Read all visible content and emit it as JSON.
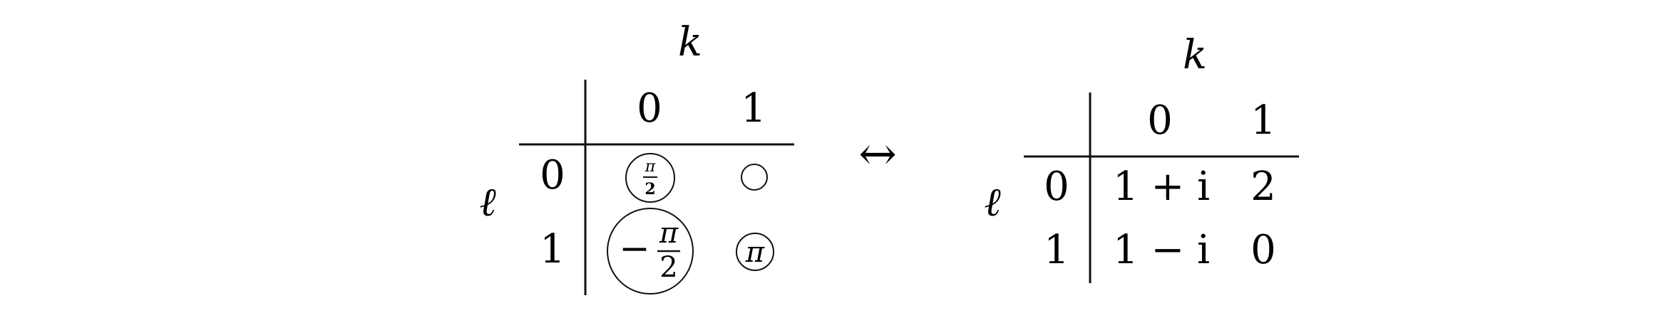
{
  "left_table": {
    "column_variable": "k",
    "row_variable": "ℓ",
    "column_headers": [
      "0",
      "1"
    ],
    "row_headers": [
      "0",
      "1"
    ],
    "cells": [
      [
        {
          "label_num": "π",
          "label_den": "2",
          "sign": "",
          "circle_size": "small"
        },
        {
          "label_num": "",
          "label_den": "",
          "sign": "",
          "circle_size": "tiny"
        }
      ],
      [
        {
          "label_num": "π",
          "label_den": "2",
          "sign": "−",
          "circle_size": "large"
        },
        {
          "label_num": "π",
          "label_den": "",
          "sign": "",
          "circle_size": "small"
        }
      ]
    ]
  },
  "arrow": "↔",
  "right_table": {
    "column_variable": "k",
    "row_variable": "ℓ",
    "column_headers": [
      "0",
      "1"
    ],
    "row_headers": [
      "0",
      "1"
    ],
    "cells": [
      [
        "1 + i",
        "2"
      ],
      [
        "1 − i",
        "0"
      ]
    ]
  }
}
